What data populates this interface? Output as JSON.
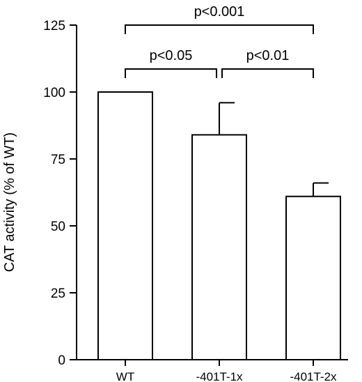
{
  "chart_data": {
    "type": "bar",
    "title": "",
    "xlabel": "",
    "ylabel": "CAT activity (% of WT)",
    "ylim": [
      0,
      125
    ],
    "yticks": [
      0,
      25,
      50,
      75,
      100,
      125
    ],
    "grid": false,
    "categories": [
      "WT",
      "-401T-1x",
      "-401T-2x"
    ],
    "values": [
      100,
      84,
      61
    ],
    "errors": [
      0,
      12,
      5
    ],
    "significance": [
      {
        "from": 0,
        "to": 1,
        "label": "p<0.05",
        "level": 1
      },
      {
        "from": 1,
        "to": 2,
        "label": "p<0.01",
        "level": 1
      },
      {
        "from": 0,
        "to": 2,
        "label": "p<0.001",
        "level": 2
      }
    ]
  }
}
